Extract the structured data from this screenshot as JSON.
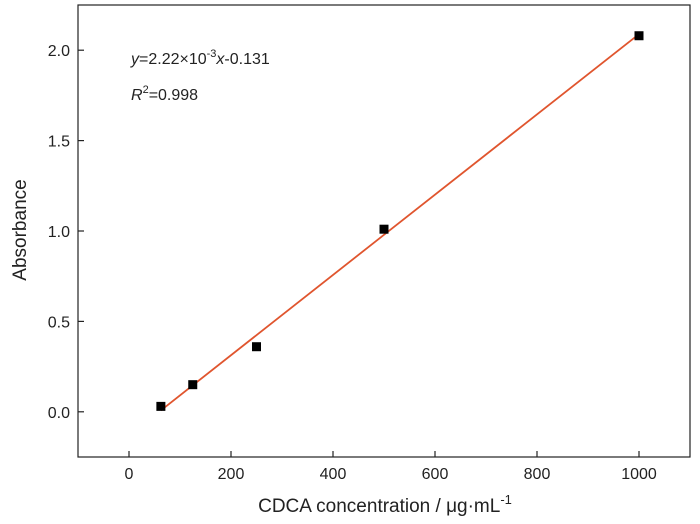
{
  "chart_data": {
    "type": "scatter",
    "xlabel": "CDCA concentration / μg·mL",
    "xlabel_sup": "-1",
    "ylabel": "Absorbance",
    "xlim": [
      -100,
      1100
    ],
    "ylim": [
      -0.25,
      2.25
    ],
    "xticks": [
      0,
      200,
      400,
      600,
      800,
      1000
    ],
    "yticks": [
      0.0,
      0.5,
      1.0,
      1.5,
      2.0
    ],
    "xtick_labels": [
      "0",
      "200",
      "400",
      "600",
      "800",
      "1000"
    ],
    "ytick_labels": [
      "0.0",
      "0.5",
      "1.0",
      "1.5",
      "2.0"
    ],
    "grid": false,
    "points": [
      {
        "x": 62.5,
        "y": 0.03
      },
      {
        "x": 125,
        "y": 0.15
      },
      {
        "x": 250,
        "y": 0.36
      },
      {
        "x": 500,
        "y": 1.01
      },
      {
        "x": 1000,
        "y": 2.08
      }
    ],
    "fit_line": {
      "slope": 0.00222,
      "intercept": -0.131,
      "x_range": [
        62.5,
        1000
      ],
      "color": "#e0552e"
    },
    "marker_color": "#000000",
    "annotations": {
      "equation": {
        "y_var": "y",
        "eq_prefix": "=2.22×10",
        "exp": "-3",
        "x_var": "x",
        "eq_suffix": "-0.131"
      },
      "r2": {
        "r_var": "R",
        "exp": "2",
        "value": "=0.998"
      }
    }
  }
}
